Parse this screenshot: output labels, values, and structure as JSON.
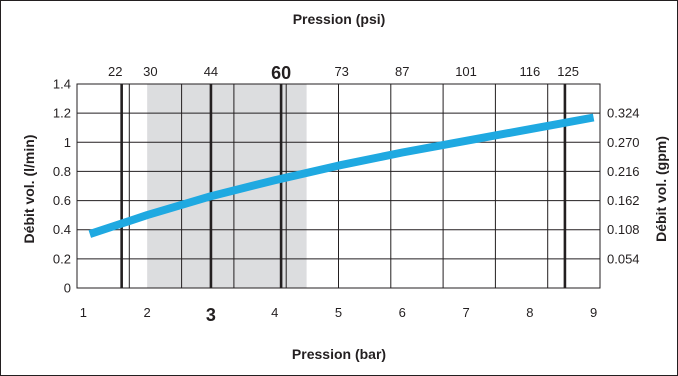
{
  "chart_data": {
    "type": "line",
    "title_top": "Pression (psi)",
    "xlabel": "Pression (bar)",
    "ylabel_left": "Débit vol. (l/min)",
    "ylabel_right": "Débit vol. (gpm)",
    "x_range": [
      0.9,
      9.1
    ],
    "ylim": [
      0,
      1.4
    ],
    "x_ticks": [
      "1",
      "2",
      "3",
      "4",
      "5",
      "6",
      "7",
      "8",
      "9"
    ],
    "x_tick_bold": "3",
    "y_ticks_left": [
      "0",
      "0.2",
      "0.4",
      "0.6",
      "0.8",
      "1",
      "1.2",
      "1.4"
    ],
    "y_ticks_right": [
      "0.054",
      "0.108",
      "0.162",
      "0.216",
      "0.270",
      "0.324"
    ],
    "psi_ticks": [
      {
        "label": "22",
        "bar": 1.5
      },
      {
        "label": "30",
        "bar": 2.05
      },
      {
        "label": "44",
        "bar": 3.0
      },
      {
        "label": "60",
        "bar": 4.1,
        "bold": true
      },
      {
        "label": "73",
        "bar": 5.05
      },
      {
        "label": "87",
        "bar": 6.0
      },
      {
        "label": "101",
        "bar": 7.0
      },
      {
        "label": "116",
        "bar": 8.0
      },
      {
        "label": "125",
        "bar": 8.6
      }
    ],
    "shaded_range_bar": [
      2.0,
      4.5
    ],
    "emphasis_lines_bar": [
      1.6,
      3.0,
      4.1,
      8.55
    ],
    "series": [
      {
        "color": "#1fa9e1",
        "x": [
          1.1,
          2.0,
          3.0,
          4.0,
          5.0,
          6.0,
          7.0,
          8.0,
          9.0
        ],
        "y": [
          0.37,
          0.5,
          0.63,
          0.74,
          0.84,
          0.93,
          1.01,
          1.09,
          1.17
        ]
      }
    ]
  }
}
